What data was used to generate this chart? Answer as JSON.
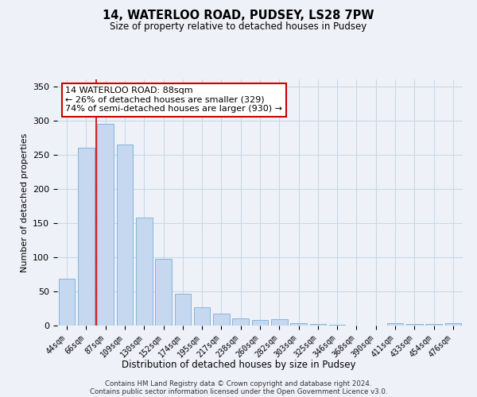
{
  "title1": "14, WATERLOO ROAD, PUDSEY, LS28 7PW",
  "title2": "Size of property relative to detached houses in Pudsey",
  "xlabel": "Distribution of detached houses by size in Pudsey",
  "ylabel": "Number of detached properties",
  "categories": [
    "44sqm",
    "66sqm",
    "87sqm",
    "109sqm",
    "130sqm",
    "152sqm",
    "174sqm",
    "195sqm",
    "217sqm",
    "238sqm",
    "260sqm",
    "282sqm",
    "303sqm",
    "325sqm",
    "346sqm",
    "368sqm",
    "390sqm",
    "411sqm",
    "433sqm",
    "454sqm",
    "476sqm"
  ],
  "values": [
    68,
    260,
    295,
    265,
    158,
    97,
    47,
    27,
    18,
    10,
    8,
    9,
    4,
    2,
    1,
    0,
    0,
    4,
    2,
    2,
    3
  ],
  "bar_color": "#c5d8f0",
  "bar_edge_color": "#7aadd4",
  "grid_color": "#c8d8e8",
  "background_color": "#eef2f8",
  "annotation_text": "14 WATERLOO ROAD: 88sqm\n← 26% of detached houses are smaller (329)\n74% of semi-detached houses are larger (930) →",
  "annotation_box_color": "#ffffff",
  "annotation_box_edge_color": "#cc0000",
  "property_line_index": 2,
  "property_line_color": "#cc0000",
  "ylim": [
    0,
    360
  ],
  "footer1": "Contains HM Land Registry data © Crown copyright and database right 2024.",
  "footer2": "Contains public sector information licensed under the Open Government Licence v3.0."
}
